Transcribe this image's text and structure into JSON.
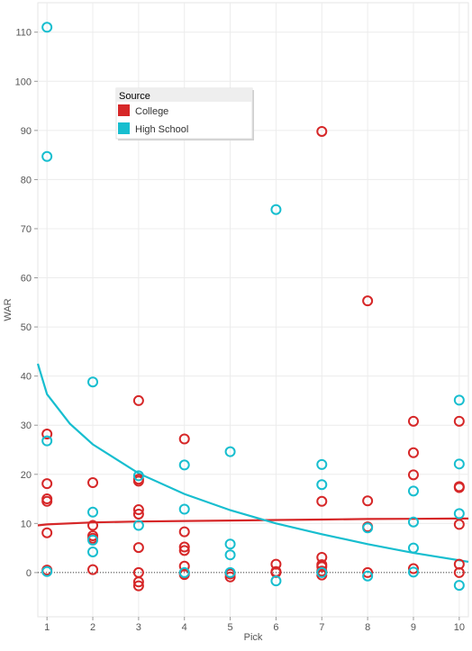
{
  "chart_data": {
    "type": "scatter",
    "xlabel": "Pick",
    "ylabel": "WAR",
    "xlim": [
      0.8,
      10.2
    ],
    "ylim": [
      -9,
      116
    ],
    "x_ticks": [
      1,
      2,
      3,
      4,
      5,
      6,
      7,
      8,
      9,
      10
    ],
    "y_ticks": [
      0,
      10,
      20,
      30,
      40,
      50,
      60,
      70,
      80,
      90,
      100,
      110
    ],
    "grid": true,
    "zero_reference_line": true,
    "legend": {
      "title": "Source",
      "placement": "top-left",
      "entries": [
        "College",
        "High School"
      ]
    },
    "series": [
      {
        "name": "College",
        "color": "#d62728",
        "marker": "open-circle",
        "points": [
          [
            1,
            28.2
          ],
          [
            1,
            18.1
          ],
          [
            1,
            15.0
          ],
          [
            1,
            14.5
          ],
          [
            1,
            8.1
          ],
          [
            1,
            0.5
          ],
          [
            2,
            18.3
          ],
          [
            2,
            9.6
          ],
          [
            2,
            7.5
          ],
          [
            2,
            7.0
          ],
          [
            2,
            0.6
          ],
          [
            3,
            35.0
          ],
          [
            3,
            19.0
          ],
          [
            3,
            18.6
          ],
          [
            3,
            12.8
          ],
          [
            3,
            11.9
          ],
          [
            3,
            5.1
          ],
          [
            3,
            0.0
          ],
          [
            3,
            -1.9
          ],
          [
            3,
            -2.7
          ],
          [
            4,
            27.2
          ],
          [
            4,
            8.3
          ],
          [
            4,
            5.2
          ],
          [
            4,
            4.5
          ],
          [
            4,
            1.3
          ],
          [
            4,
            -0.1
          ],
          [
            4,
            -0.4
          ],
          [
            5,
            -0.3
          ],
          [
            5,
            -0.9
          ],
          [
            6,
            1.7
          ],
          [
            6,
            0.2
          ],
          [
            6,
            0.0
          ],
          [
            7,
            89.8
          ],
          [
            7,
            14.5
          ],
          [
            7,
            3.1
          ],
          [
            7,
            1.6
          ],
          [
            7,
            1.2
          ],
          [
            7,
            0.3
          ],
          [
            7,
            -0.5
          ],
          [
            8,
            55.3
          ],
          [
            8,
            14.6
          ],
          [
            8,
            9.3
          ],
          [
            8,
            0.0
          ],
          [
            9,
            30.8
          ],
          [
            9,
            24.4
          ],
          [
            9,
            19.9
          ],
          [
            9,
            0.8
          ],
          [
            10,
            30.8
          ],
          [
            10,
            17.5
          ],
          [
            10,
            17.3
          ],
          [
            10,
            9.8
          ],
          [
            10,
            1.7
          ],
          [
            10,
            0.0
          ]
        ]
      },
      {
        "name": "High School",
        "color": "#17becf",
        "marker": "open-circle",
        "points": [
          [
            1,
            111.0
          ],
          [
            1,
            84.7
          ],
          [
            1,
            26.8
          ],
          [
            1,
            0.2
          ],
          [
            2,
            38.8
          ],
          [
            2,
            12.3
          ],
          [
            2,
            6.6
          ],
          [
            2,
            4.2
          ],
          [
            3,
            19.7
          ],
          [
            3,
            9.6
          ],
          [
            4,
            21.9
          ],
          [
            4,
            12.9
          ],
          [
            4,
            0.0
          ],
          [
            5,
            24.6
          ],
          [
            5,
            5.8
          ],
          [
            5,
            3.6
          ],
          [
            5,
            0.0
          ],
          [
            6,
            73.9
          ],
          [
            6,
            -1.7
          ],
          [
            7,
            22.0
          ],
          [
            7,
            17.9
          ],
          [
            7,
            0.0
          ],
          [
            8,
            9.1
          ],
          [
            8,
            -0.7
          ],
          [
            9,
            16.6
          ],
          [
            9,
            10.3
          ],
          [
            9,
            5.0
          ],
          [
            9,
            0.1
          ],
          [
            10,
            35.1
          ],
          [
            10,
            22.1
          ],
          [
            10,
            12.0
          ],
          [
            10,
            -2.6
          ]
        ]
      }
    ],
    "trend_lines": [
      {
        "series": "College",
        "color": "#d62728",
        "type": "power",
        "points": [
          [
            0.8,
            9.6
          ],
          [
            1,
            9.8
          ],
          [
            2,
            10.2
          ],
          [
            3,
            10.4
          ],
          [
            4,
            10.5
          ],
          [
            5,
            10.6
          ],
          [
            6,
            10.7
          ],
          [
            7,
            10.8
          ],
          [
            8,
            10.9
          ],
          [
            9,
            10.95
          ],
          [
            10,
            11.0
          ],
          [
            10.2,
            11.0
          ]
        ]
      },
      {
        "series": "High School",
        "color": "#17becf",
        "type": "logarithmic",
        "points": [
          [
            0.8,
            42.5
          ],
          [
            1,
            36.3
          ],
          [
            1.5,
            30.3
          ],
          [
            2,
            26.1
          ],
          [
            3,
            20.2
          ],
          [
            4,
            16.0
          ],
          [
            5,
            12.7
          ],
          [
            6,
            10.0
          ],
          [
            7,
            7.8
          ],
          [
            8,
            5.8
          ],
          [
            9,
            4.0
          ],
          [
            10,
            2.5
          ],
          [
            10.2,
            2.2
          ]
        ]
      }
    ]
  }
}
